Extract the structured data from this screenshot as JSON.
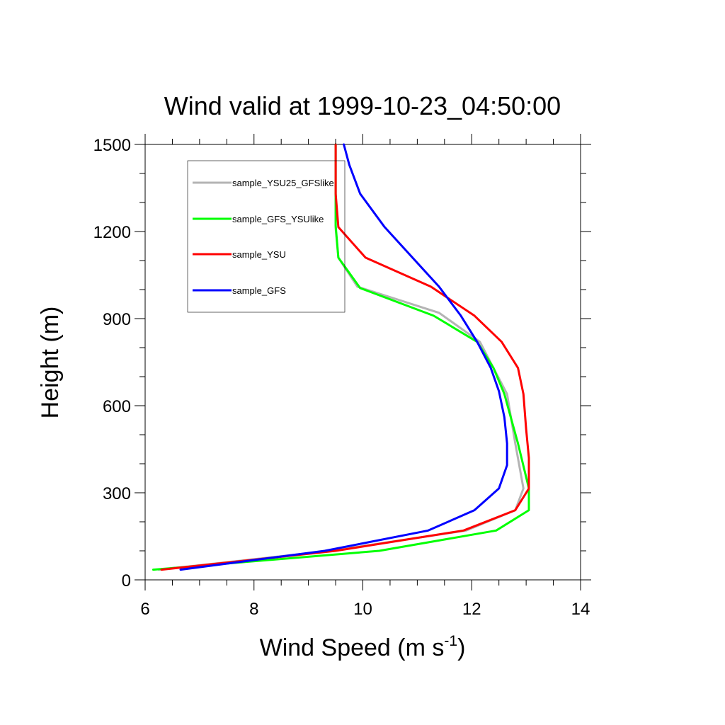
{
  "chart_data": {
    "type": "line",
    "title": "Wind valid at 1999-10-23_04:50:00",
    "xlabel": "Wind Speed (m s",
    "xlabel_superscript": "-1",
    "xlabel_suffix": ")",
    "ylabel": "Height (m)",
    "xlim": [
      6,
      14
    ],
    "ylim": [
      0,
      1500
    ],
    "xticks": [
      6,
      8,
      10,
      12,
      14
    ],
    "yticks": [
      0,
      300,
      600,
      900,
      1200,
      1500
    ],
    "grid": false,
    "legend_position": "top-left",
    "series": [
      {
        "name": "sample_YSU25_GFSlike",
        "color": "#b4b4b4",
        "points": [
          [
            6.25,
            35
          ],
          [
            9.4,
            100
          ],
          [
            11.9,
            170
          ],
          [
            12.8,
            240
          ],
          [
            12.95,
            315
          ],
          [
            12.8,
            470
          ],
          [
            12.65,
            640
          ],
          [
            12.4,
            730
          ],
          [
            12.15,
            820
          ],
          [
            11.4,
            920
          ],
          [
            9.9,
            1010
          ],
          [
            9.55,
            1110
          ],
          [
            9.5,
            1210
          ],
          [
            9.5,
            1330
          ],
          [
            9.5,
            1500
          ]
        ]
      },
      {
        "name": "sample_GFS_YSUlike",
        "color": "#00ff00",
        "points": [
          [
            6.15,
            35
          ],
          [
            10.3,
            100
          ],
          [
            12.45,
            170
          ],
          [
            13.05,
            240
          ],
          [
            13.05,
            315
          ],
          [
            12.85,
            470
          ],
          [
            12.6,
            640
          ],
          [
            12.4,
            730
          ],
          [
            12.1,
            820
          ],
          [
            11.3,
            910
          ],
          [
            9.95,
            1005
          ],
          [
            9.55,
            1110
          ],
          [
            9.5,
            1220
          ],
          [
            9.5,
            1330
          ],
          [
            9.5,
            1500
          ]
        ]
      },
      {
        "name": "sample_YSU",
        "color": "#ff0000",
        "points": [
          [
            6.3,
            35
          ],
          [
            9.5,
            100
          ],
          [
            11.85,
            170
          ],
          [
            12.8,
            240
          ],
          [
            13.05,
            315
          ],
          [
            13.05,
            420
          ],
          [
            13.0,
            520
          ],
          [
            12.95,
            640
          ],
          [
            12.85,
            730
          ],
          [
            12.55,
            820
          ],
          [
            12.05,
            910
          ],
          [
            11.25,
            1010
          ],
          [
            10.05,
            1110
          ],
          [
            9.55,
            1215
          ],
          [
            9.5,
            1330
          ],
          [
            9.5,
            1500
          ]
        ]
      },
      {
        "name": "sample_GFS",
        "color": "#0000ff",
        "points": [
          [
            6.65,
            35
          ],
          [
            9.3,
            100
          ],
          [
            11.2,
            170
          ],
          [
            12.05,
            240
          ],
          [
            12.5,
            315
          ],
          [
            12.65,
            395
          ],
          [
            12.65,
            470
          ],
          [
            12.6,
            560
          ],
          [
            12.5,
            650
          ],
          [
            12.35,
            730
          ],
          [
            12.1,
            820
          ],
          [
            11.8,
            910
          ],
          [
            11.4,
            1010
          ],
          [
            10.4,
            1215
          ],
          [
            9.95,
            1330
          ],
          [
            9.75,
            1430
          ],
          [
            9.65,
            1500
          ]
        ]
      }
    ]
  }
}
